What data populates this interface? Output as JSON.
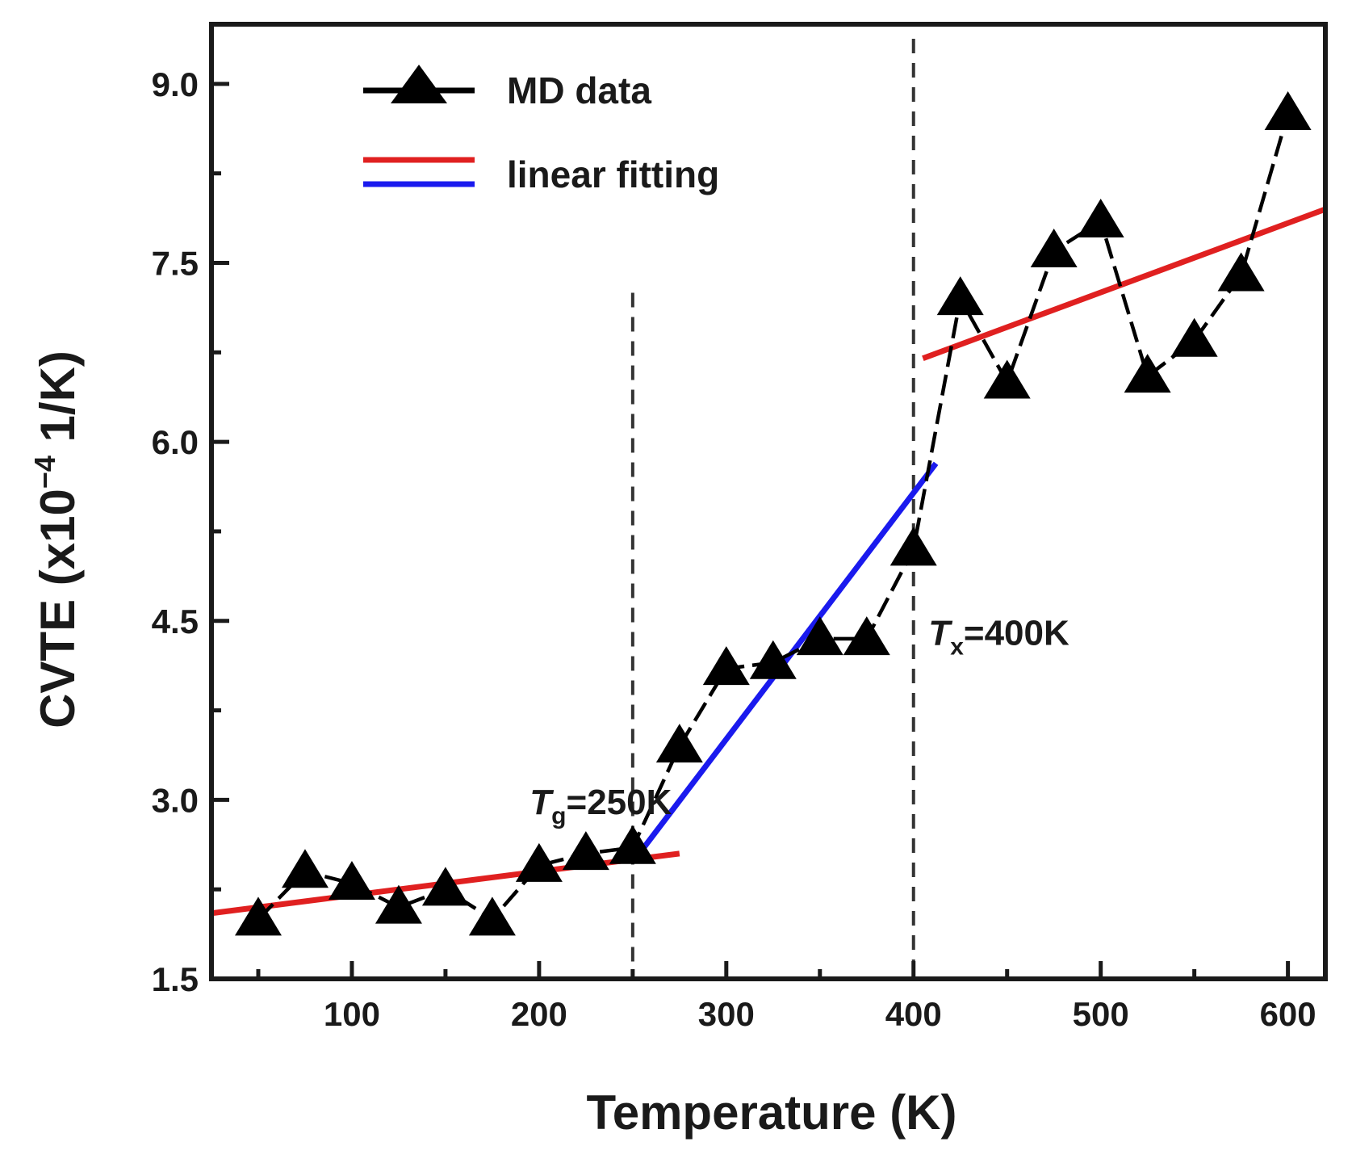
{
  "chart_data": {
    "type": "line",
    "xlabel": "Temperature (K)",
    "ylabel_parts": {
      "base": "CVTE (x10",
      "sup": "−4",
      "unit": " 1/K)"
    },
    "xlim": [
      25,
      620
    ],
    "ylim": [
      1.5,
      9.5
    ],
    "xticks": [
      100,
      200,
      300,
      400,
      500,
      600
    ],
    "yticks": [
      1.5,
      3.0,
      4.5,
      6.0,
      7.5,
      9.0
    ],
    "ytick_labels": [
      "1.5",
      "3.0",
      "4.5",
      "6.0",
      "7.5",
      "9.0"
    ],
    "series": [
      {
        "name": "MD data",
        "marker": "triangle",
        "color": "#000000",
        "x": [
          50,
          75,
          100,
          125,
          150,
          175,
          200,
          225,
          250,
          275,
          300,
          325,
          350,
          375,
          400,
          425,
          450,
          475,
          500,
          525,
          550,
          575,
          600
        ],
        "y": [
          2.0,
          2.4,
          2.3,
          2.1,
          2.25,
          2.0,
          2.45,
          2.55,
          2.6,
          3.45,
          4.1,
          4.15,
          4.35,
          4.35,
          5.1,
          7.2,
          6.5,
          7.6,
          7.85,
          6.55,
          6.85,
          7.4,
          8.75
        ]
      }
    ],
    "fits": [
      {
        "name": "linear fitting",
        "color": "#e02020",
        "x": [
          25,
          275
        ],
        "y": [
          2.05,
          2.55
        ]
      },
      {
        "name": "linear fitting",
        "color": "#1a1aee",
        "x": [
          255,
          412
        ],
        "y": [
          2.58,
          5.82
        ]
      },
      {
        "name": "linear fitting",
        "color": "#e02020",
        "x": [
          405,
          620
        ],
        "y": [
          6.7,
          7.95
        ]
      }
    ],
    "vlines": [
      250,
      400
    ],
    "annotations": [
      {
        "sym": "T",
        "sub": "g",
        "rest": "=250K",
        "x": 195,
        "y": 2.88
      },
      {
        "sym": "T",
        "sub": "x",
        "rest": "=400K",
        "x": 408,
        "y": 4.3
      }
    ],
    "legend": {
      "placement": "top-left",
      "entries": [
        {
          "label": "MD data",
          "kind": "marker-line"
        },
        {
          "label": "linear fitting",
          "kind": "double-line"
        }
      ]
    }
  },
  "colors": {
    "axis": "#1a1a1a",
    "fit_red": "#e02020",
    "fit_blue": "#1a1aee",
    "marker": "#000000"
  }
}
